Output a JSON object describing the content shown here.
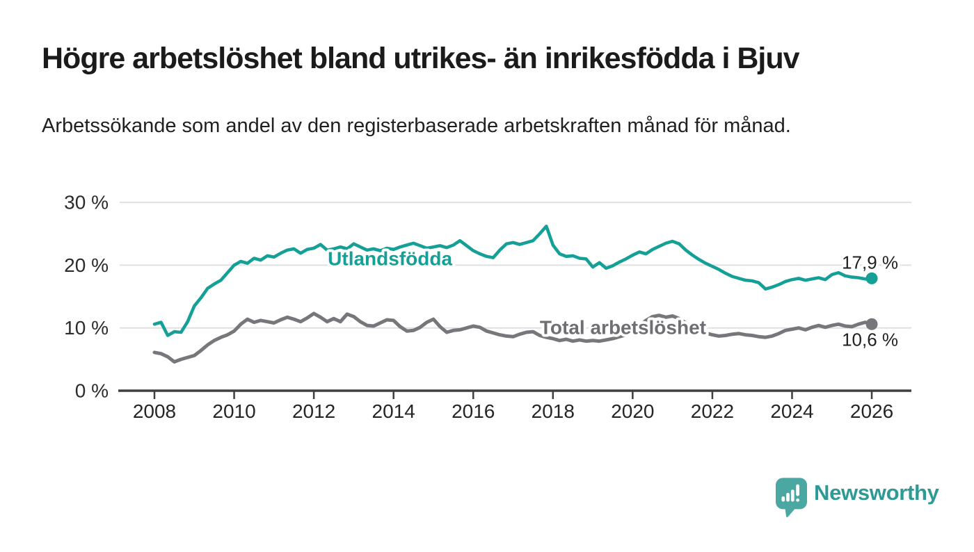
{
  "header": {
    "title": "Högre arbetslöshet bland utrikes- än inrikesfödda i Bjuv",
    "subtitle": "Arbetssökande som andel av den registerbaserade arbetskraften månad för månad."
  },
  "chart_data": {
    "type": "line",
    "title": "Högre arbetslöshet bland utrikes- än inrikesfödda i Bjuv",
    "xlabel": "",
    "ylabel": "",
    "grid": "horizontal",
    "legend_position": "inline-labels",
    "xlim": [
      2007.1,
      2027.0
    ],
    "ylim": [
      0,
      30
    ],
    "x_unit": "year (monthly data)",
    "y_unit": "percent",
    "x_start": 2008.0,
    "x_step_months": 2,
    "x_ticks": {
      "values": [
        2008,
        2010,
        2012,
        2014,
        2016,
        2018,
        2020,
        2022,
        2024,
        2026
      ],
      "labels": [
        "2008",
        "2010",
        "2012",
        "2014",
        "2016",
        "2018",
        "2020",
        "2022",
        "2024",
        "2026"
      ]
    },
    "y_ticks": {
      "values": [
        0,
        10,
        20,
        30
      ],
      "labels": [
        "0 %",
        "10 %",
        "20 %",
        "30 %"
      ]
    },
    "series": [
      {
        "name": "Utlandsfödda",
        "color": "#14a097",
        "label_color": "#14a097",
        "inline_label": {
          "text": "Utlandsfödda",
          "x": 2012.35,
          "y": 20.0
        },
        "end_label": "17,9 %",
        "end_value": 17.9,
        "values": [
          10.6,
          10.9,
          8.8,
          9.4,
          9.3,
          11.0,
          13.5,
          14.8,
          16.3,
          17.0,
          17.6,
          18.8,
          20.0,
          20.6,
          20.3,
          21.1,
          20.8,
          21.5,
          21.3,
          21.9,
          22.4,
          22.6,
          21.9,
          22.5,
          22.7,
          23.3,
          22.4,
          22.6,
          22.9,
          22.6,
          23.4,
          22.9,
          22.4,
          22.6,
          22.3,
          22.7,
          22.5,
          22.9,
          23.2,
          23.5,
          23.1,
          22.7,
          22.9,
          23.1,
          22.8,
          23.2,
          23.9,
          23.1,
          22.3,
          21.8,
          21.4,
          21.2,
          22.4,
          23.4,
          23.6,
          23.3,
          23.6,
          23.9,
          25.0,
          26.2,
          23.2,
          21.8,
          21.4,
          21.5,
          21.1,
          21.0,
          19.7,
          20.4,
          19.5,
          19.9,
          20.5,
          21.0,
          21.6,
          22.1,
          21.8,
          22.5,
          23.0,
          23.5,
          23.8,
          23.4,
          22.4,
          21.6,
          20.9,
          20.3,
          19.8,
          19.3,
          18.7,
          18.2,
          17.9,
          17.6,
          17.5,
          17.2,
          16.2,
          16.5,
          16.9,
          17.4,
          17.7,
          17.9,
          17.6,
          17.8,
          18.0,
          17.7,
          18.5,
          18.8,
          18.3,
          18.1,
          18.0,
          17.8,
          17.9
        ]
      },
      {
        "name": "Total arbetslöshet",
        "color": "#77777b",
        "label_color": "#6e6e73",
        "inline_label": {
          "text": "Total arbetslöshet",
          "x": 2017.67,
          "y": 9.05
        },
        "end_label": "10,6 %",
        "end_value": 10.6,
        "values": [
          6.1,
          5.9,
          5.4,
          4.6,
          5.0,
          5.3,
          5.6,
          6.4,
          7.3,
          8.0,
          8.5,
          8.9,
          9.5,
          10.6,
          11.4,
          10.9,
          11.2,
          11.0,
          10.8,
          11.3,
          11.7,
          11.4,
          11.0,
          11.6,
          12.3,
          11.7,
          11.0,
          11.5,
          11.0,
          12.2,
          11.8,
          11.0,
          10.4,
          10.3,
          10.8,
          11.3,
          11.2,
          10.2,
          9.5,
          9.6,
          10.1,
          10.9,
          11.4,
          10.2,
          9.3,
          9.6,
          9.7,
          10.0,
          10.3,
          10.1,
          9.5,
          9.2,
          8.9,
          8.7,
          8.6,
          9.0,
          9.3,
          9.4,
          8.8,
          8.5,
          8.3,
          8.0,
          8.2,
          7.9,
          8.1,
          7.9,
          8.0,
          7.9,
          8.1,
          8.3,
          8.6,
          8.9,
          9.4,
          10.3,
          11.2,
          11.8,
          12.0,
          11.7,
          11.9,
          11.5,
          10.8,
          10.1,
          9.6,
          9.2,
          8.9,
          8.7,
          8.8,
          9.0,
          9.1,
          8.9,
          8.8,
          8.6,
          8.5,
          8.7,
          9.1,
          9.6,
          9.8,
          10.0,
          9.7,
          10.1,
          10.4,
          10.1,
          10.4,
          10.6,
          10.3,
          10.2,
          10.6,
          10.9,
          10.6
        ]
      }
    ]
  },
  "footer": {
    "brand": "Newsworthy"
  },
  "colors": {
    "accent_teal": "#14a097",
    "line_gray": "#77777b",
    "grid": "#e0e0e0",
    "axis": "#3f3f3f",
    "text_dark": "#1f1f1f",
    "logo_bubble": "#4ba7a2",
    "logo_text": "#2d9a96"
  }
}
